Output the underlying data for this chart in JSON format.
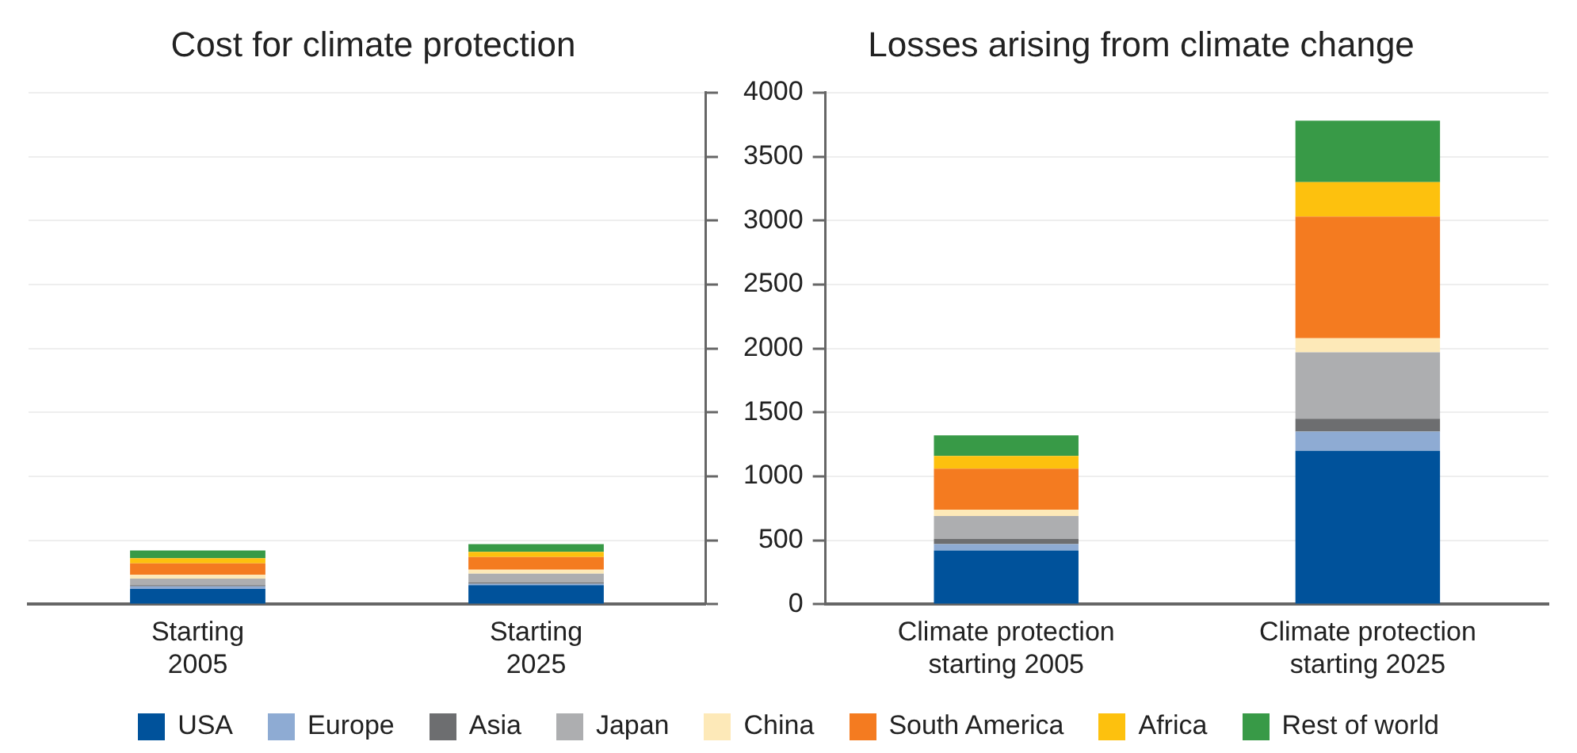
{
  "chart_data": [
    {
      "type": "bar",
      "title": "Cost for climate protection",
      "categories": [
        "Starting\n2005",
        "Starting\n2025"
      ],
      "stacked": true,
      "ylim": [
        0,
        4000
      ],
      "yticks": [
        0,
        500,
        1000,
        1500,
        2000,
        2500,
        3000,
        3500,
        4000
      ],
      "tick_labels": "x",
      "grid": "y",
      "series": [
        {
          "color": "#00529b",
          "values": [
            120,
            150
          ]
        },
        {
          "color": "#8eabd3",
          "values": [
            20,
            10
          ]
        },
        {
          "color": "#6d6e70",
          "values": [
            10,
            10
          ]
        },
        {
          "color": "#adaeb0",
          "values": [
            50,
            70
          ]
        },
        {
          "color": "#fde9b8",
          "values": [
            30,
            30
          ]
        },
        {
          "color": "#f47b20",
          "values": [
            90,
            100
          ]
        },
        {
          "color": "#fdc10e",
          "values": [
            40,
            40
          ]
        },
        {
          "color": "#389a47",
          "values": [
            60,
            60
          ]
        }
      ]
    },
    {
      "type": "bar",
      "title": "Losses arising from climate change",
      "categories": [
        "Climate protection\nstarting 2005",
        "Climate protection\nstarting 2025"
      ],
      "stacked": true,
      "ylim": [
        0,
        4000
      ],
      "yticks": [
        0,
        500,
        1000,
        1500,
        2000,
        2500,
        3000,
        3500,
        4000
      ],
      "grid": "y",
      "legend": "bottom",
      "series": [
        {
          "name": "USA",
          "color": "#00529b",
          "values": [
            420,
            1200
          ]
        },
        {
          "name": "Europe",
          "color": "#8eabd3",
          "values": [
            50,
            150
          ]
        },
        {
          "name": "Asia",
          "color": "#6d6e70",
          "values": [
            40,
            100
          ]
        },
        {
          "name": "Japan",
          "color": "#adaeb0",
          "values": [
            180,
            520
          ]
        },
        {
          "name": "China",
          "color": "#fde9b8",
          "values": [
            50,
            110
          ]
        },
        {
          "name": "South America",
          "color": "#f47b20",
          "values": [
            320,
            950
          ]
        },
        {
          "name": "Africa",
          "color": "#fdc10e",
          "values": [
            100,
            270
          ]
        },
        {
          "name": "Rest of world",
          "color": "#389a47",
          "values": [
            160,
            480
          ]
        }
      ]
    }
  ]
}
